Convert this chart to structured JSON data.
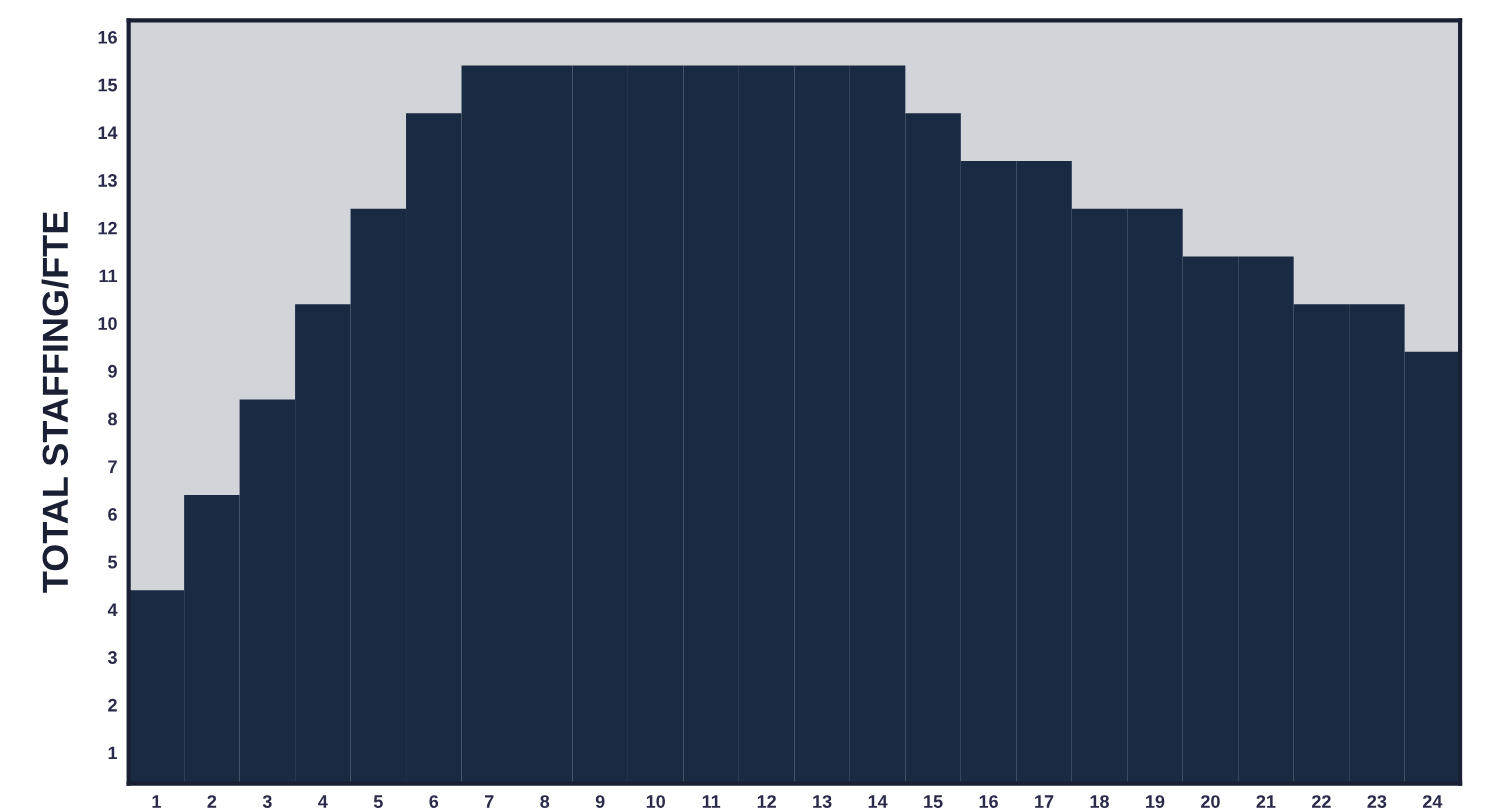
{
  "chart_data": {
    "type": "bar",
    "ylabel": "TOTAL STAFFING/FTE",
    "categories": [
      "1",
      "2",
      "3",
      "4",
      "5",
      "6",
      "7",
      "8",
      "9",
      "10",
      "11",
      "12",
      "13",
      "14",
      "15",
      "16",
      "17",
      "18",
      "19",
      "20",
      "21",
      "22",
      "23",
      "24"
    ],
    "values": [
      4.4,
      6.4,
      8.4,
      10.4,
      12.4,
      14.4,
      15.4,
      15.4,
      15.4,
      15.4,
      15.4,
      15.4,
      15.4,
      15.4,
      14.4,
      13.4,
      13.4,
      12.4,
      12.4,
      11.4,
      11.4,
      10.4,
      10.4,
      9.4
    ],
    "color": "#1a2a42",
    "ylim": [
      0.35,
      16.35
    ],
    "yticks": [
      1,
      2,
      3,
      4,
      5,
      6,
      7,
      8,
      9,
      10,
      11,
      12,
      13,
      14,
      15,
      16
    ],
    "grid": false,
    "legend": false
  }
}
